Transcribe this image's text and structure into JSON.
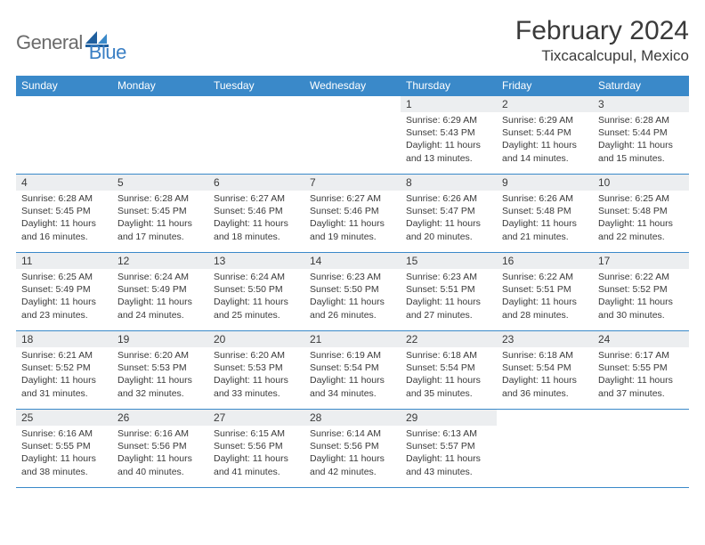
{
  "brand": {
    "general": "General",
    "blue": "Blue"
  },
  "title": "February 2024",
  "location": "Tixcacalcupul, Mexico",
  "colors": {
    "header_bg": "#3a89c9",
    "header_text": "#ffffff",
    "daynum_bg": "#eceef0",
    "text": "#3a3a3a",
    "rule": "#3a89c9",
    "logo_gray": "#6b6b6b",
    "logo_blue": "#3a7fc4"
  },
  "weekdays": [
    "Sunday",
    "Monday",
    "Tuesday",
    "Wednesday",
    "Thursday",
    "Friday",
    "Saturday"
  ],
  "weeks": [
    [
      null,
      null,
      null,
      null,
      {
        "n": "1",
        "sr": "Sunrise: 6:29 AM",
        "ss": "Sunset: 5:43 PM",
        "dl": "Daylight: 11 hours and 13 minutes."
      },
      {
        "n": "2",
        "sr": "Sunrise: 6:29 AM",
        "ss": "Sunset: 5:44 PM",
        "dl": "Daylight: 11 hours and 14 minutes."
      },
      {
        "n": "3",
        "sr": "Sunrise: 6:28 AM",
        "ss": "Sunset: 5:44 PM",
        "dl": "Daylight: 11 hours and 15 minutes."
      }
    ],
    [
      {
        "n": "4",
        "sr": "Sunrise: 6:28 AM",
        "ss": "Sunset: 5:45 PM",
        "dl": "Daylight: 11 hours and 16 minutes."
      },
      {
        "n": "5",
        "sr": "Sunrise: 6:28 AM",
        "ss": "Sunset: 5:45 PM",
        "dl": "Daylight: 11 hours and 17 minutes."
      },
      {
        "n": "6",
        "sr": "Sunrise: 6:27 AM",
        "ss": "Sunset: 5:46 PM",
        "dl": "Daylight: 11 hours and 18 minutes."
      },
      {
        "n": "7",
        "sr": "Sunrise: 6:27 AM",
        "ss": "Sunset: 5:46 PM",
        "dl": "Daylight: 11 hours and 19 minutes."
      },
      {
        "n": "8",
        "sr": "Sunrise: 6:26 AM",
        "ss": "Sunset: 5:47 PM",
        "dl": "Daylight: 11 hours and 20 minutes."
      },
      {
        "n": "9",
        "sr": "Sunrise: 6:26 AM",
        "ss": "Sunset: 5:48 PM",
        "dl": "Daylight: 11 hours and 21 minutes."
      },
      {
        "n": "10",
        "sr": "Sunrise: 6:25 AM",
        "ss": "Sunset: 5:48 PM",
        "dl": "Daylight: 11 hours and 22 minutes."
      }
    ],
    [
      {
        "n": "11",
        "sr": "Sunrise: 6:25 AM",
        "ss": "Sunset: 5:49 PM",
        "dl": "Daylight: 11 hours and 23 minutes."
      },
      {
        "n": "12",
        "sr": "Sunrise: 6:24 AM",
        "ss": "Sunset: 5:49 PM",
        "dl": "Daylight: 11 hours and 24 minutes."
      },
      {
        "n": "13",
        "sr": "Sunrise: 6:24 AM",
        "ss": "Sunset: 5:50 PM",
        "dl": "Daylight: 11 hours and 25 minutes."
      },
      {
        "n": "14",
        "sr": "Sunrise: 6:23 AM",
        "ss": "Sunset: 5:50 PM",
        "dl": "Daylight: 11 hours and 26 minutes."
      },
      {
        "n": "15",
        "sr": "Sunrise: 6:23 AM",
        "ss": "Sunset: 5:51 PM",
        "dl": "Daylight: 11 hours and 27 minutes."
      },
      {
        "n": "16",
        "sr": "Sunrise: 6:22 AM",
        "ss": "Sunset: 5:51 PM",
        "dl": "Daylight: 11 hours and 28 minutes."
      },
      {
        "n": "17",
        "sr": "Sunrise: 6:22 AM",
        "ss": "Sunset: 5:52 PM",
        "dl": "Daylight: 11 hours and 30 minutes."
      }
    ],
    [
      {
        "n": "18",
        "sr": "Sunrise: 6:21 AM",
        "ss": "Sunset: 5:52 PM",
        "dl": "Daylight: 11 hours and 31 minutes."
      },
      {
        "n": "19",
        "sr": "Sunrise: 6:20 AM",
        "ss": "Sunset: 5:53 PM",
        "dl": "Daylight: 11 hours and 32 minutes."
      },
      {
        "n": "20",
        "sr": "Sunrise: 6:20 AM",
        "ss": "Sunset: 5:53 PM",
        "dl": "Daylight: 11 hours and 33 minutes."
      },
      {
        "n": "21",
        "sr": "Sunrise: 6:19 AM",
        "ss": "Sunset: 5:54 PM",
        "dl": "Daylight: 11 hours and 34 minutes."
      },
      {
        "n": "22",
        "sr": "Sunrise: 6:18 AM",
        "ss": "Sunset: 5:54 PM",
        "dl": "Daylight: 11 hours and 35 minutes."
      },
      {
        "n": "23",
        "sr": "Sunrise: 6:18 AM",
        "ss": "Sunset: 5:54 PM",
        "dl": "Daylight: 11 hours and 36 minutes."
      },
      {
        "n": "24",
        "sr": "Sunrise: 6:17 AM",
        "ss": "Sunset: 5:55 PM",
        "dl": "Daylight: 11 hours and 37 minutes."
      }
    ],
    [
      {
        "n": "25",
        "sr": "Sunrise: 6:16 AM",
        "ss": "Sunset: 5:55 PM",
        "dl": "Daylight: 11 hours and 38 minutes."
      },
      {
        "n": "26",
        "sr": "Sunrise: 6:16 AM",
        "ss": "Sunset: 5:56 PM",
        "dl": "Daylight: 11 hours and 40 minutes."
      },
      {
        "n": "27",
        "sr": "Sunrise: 6:15 AM",
        "ss": "Sunset: 5:56 PM",
        "dl": "Daylight: 11 hours and 41 minutes."
      },
      {
        "n": "28",
        "sr": "Sunrise: 6:14 AM",
        "ss": "Sunset: 5:56 PM",
        "dl": "Daylight: 11 hours and 42 minutes."
      },
      {
        "n": "29",
        "sr": "Sunrise: 6:13 AM",
        "ss": "Sunset: 5:57 PM",
        "dl": "Daylight: 11 hours and 43 minutes."
      },
      null,
      null
    ]
  ]
}
